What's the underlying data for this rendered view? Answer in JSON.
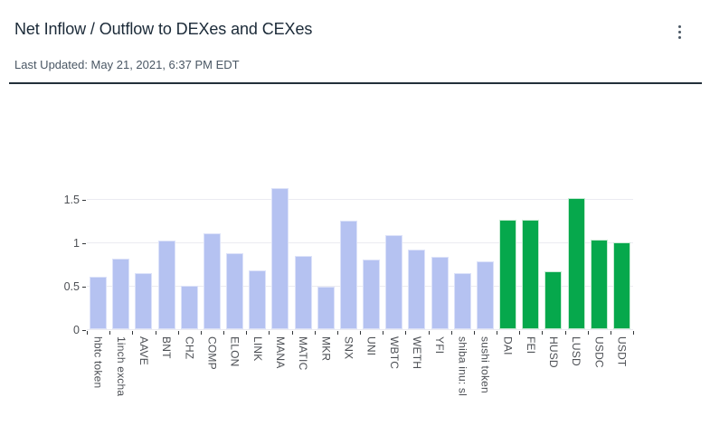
{
  "header": {
    "title": "Net Inflow / Outflow to DEXes and CEXes",
    "last_updated": "Last Updated: May 21, 2021, 6:37 PM EDT",
    "menu_icon": "kebab-menu"
  },
  "colors": {
    "background": "#ffffff",
    "title": "#1b2a38",
    "subtitle": "#4a5764",
    "divider": "#222f3a",
    "axis_label": "#4d5055",
    "gridline": "#ebebf1",
    "tick": "#333639",
    "dex_bar": "#b5c2f1",
    "dex_bar_border": "#dce2f9",
    "cex_bar": "#06a84c",
    "cex_bar_border": "#c6ebd3"
  },
  "chart_data": {
    "type": "bar",
    "title": "Net Inflow / Outflow to DEXes and CEXes",
    "xlabel": "",
    "ylabel": "",
    "ylim": [
      0,
      1.75
    ],
    "yticks": [
      0,
      0.5,
      1,
      1.5
    ],
    "ytick_labels": [
      "0",
      "0.5",
      "1",
      "1.5"
    ],
    "grid": true,
    "legend": "none",
    "x_label_rotation": 90,
    "categories": [
      "hbtc token",
      "1inch excha",
      "AAVE",
      "BNT",
      "CHZ",
      "COMP",
      "ELON",
      "LINK",
      "MANA",
      "MATIC",
      "MKR",
      "SNX",
      "UNI",
      "WBTC",
      "WETH",
      "YFI",
      "shiba inu: sl",
      "sushi token",
      "DAI",
      "FEI",
      "HUSD",
      "LUSD",
      "USDC",
      "USDT"
    ],
    "values": [
      0.61,
      0.82,
      0.65,
      1.03,
      0.51,
      1.11,
      0.88,
      0.68,
      1.63,
      0.85,
      0.49,
      1.26,
      0.81,
      1.09,
      0.92,
      0.84,
      0.65,
      0.79,
      1.27,
      1.27,
      0.67,
      1.52,
      1.04,
      1.01
    ],
    "groups": [
      "dex",
      "dex",
      "dex",
      "dex",
      "dex",
      "dex",
      "dex",
      "dex",
      "dex",
      "dex",
      "dex",
      "dex",
      "dex",
      "dex",
      "dex",
      "dex",
      "dex",
      "dex",
      "cex",
      "cex",
      "cex",
      "cex",
      "cex",
      "cex"
    ]
  }
}
